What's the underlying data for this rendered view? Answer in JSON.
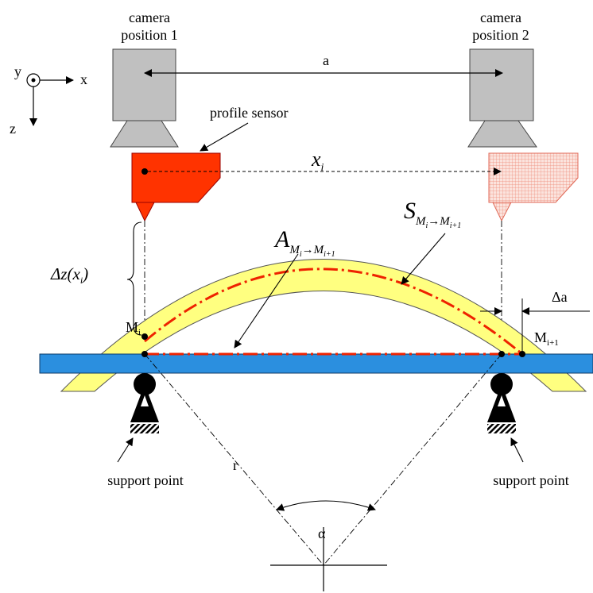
{
  "labels": {
    "camera1_line1": "camera",
    "camera1_line2": "position 1",
    "camera2_line1": "camera",
    "camera2_line2": "position 2",
    "distance_a": "a",
    "axis_y": "y",
    "axis_x": "x",
    "axis_z": "z",
    "profile_sensor": "profile sensor",
    "xi_main": "x",
    "xi_sub": "i",
    "S_main": "S",
    "S_sub_M": "M",
    "S_sub_i": "i",
    "S_sub_arrow": "→",
    "S_sub_M2": "M",
    "S_sub_i1": "i+1",
    "A_main": "A",
    "A_sub_M": "M",
    "A_sub_i": "i",
    "A_sub_arrow": "→",
    "A_sub_M2": "M",
    "A_sub_i1": "i+1",
    "dz_prefix": "Δz(x",
    "dz_sub": "i",
    "dz_suffix": ")",
    "delta_a": "Δa",
    "M_i_main": "M",
    "M_i_sub": "i",
    "M_i1_main": "M",
    "M_i1_sub": "i+1",
    "support_left": "support point",
    "support_right": "support point",
    "radius_r": "r",
    "angle_alpha": "α"
  },
  "colors": {
    "camera": "#c0c0c0",
    "sensor_active": "#ff3300",
    "sensor_ghost": "#f8c9bf",
    "beam": "#2b8fdf",
    "specimen": "#ffff80",
    "dashdot": "#ee2200"
  }
}
